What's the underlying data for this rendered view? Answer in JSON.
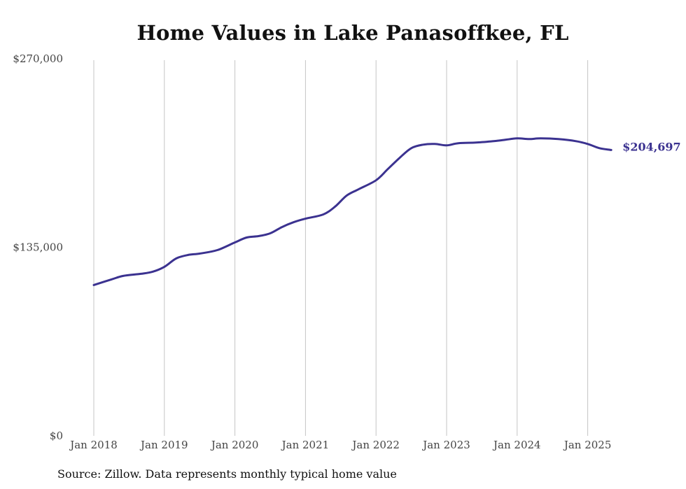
{
  "chart_data": {
    "type": "line",
    "title": "Home Values in Lake Panasoffkee, FL",
    "xlabel": "",
    "ylabel": "",
    "ylim": [
      0,
      270000
    ],
    "y_ticks": [
      {
        "value": 0,
        "label": "$0"
      },
      {
        "value": 135000,
        "label": "$135,000"
      },
      {
        "value": 270000,
        "label": "$270,000"
      }
    ],
    "x_ticks": [
      {
        "value": "2018-01",
        "label": "Jan 2018"
      },
      {
        "value": "2019-01",
        "label": "Jan 2019"
      },
      {
        "value": "2020-01",
        "label": "Jan 2020"
      },
      {
        "value": "2021-01",
        "label": "Jan 2021"
      },
      {
        "value": "2022-01",
        "label": "Jan 2022"
      },
      {
        "value": "2023-01",
        "label": "Jan 2023"
      },
      {
        "value": "2024-01",
        "label": "Jan 2024"
      },
      {
        "value": "2025-01",
        "label": "Jan 2025"
      }
    ],
    "grid": "vertical",
    "line_color": "#3b3290",
    "end_label": "$204,697",
    "series": [
      {
        "points": [
          {
            "x": "2018-01",
            "y": 108000
          },
          {
            "x": "2018-04",
            "y": 112000
          },
          {
            "x": "2018-06",
            "y": 114500
          },
          {
            "x": "2018-09",
            "y": 116000
          },
          {
            "x": "2018-11",
            "y": 117500
          },
          {
            "x": "2019-01",
            "y": 121000
          },
          {
            "x": "2019-03",
            "y": 127000
          },
          {
            "x": "2019-05",
            "y": 129500
          },
          {
            "x": "2019-07",
            "y": 130500
          },
          {
            "x": "2019-10",
            "y": 133000
          },
          {
            "x": "2020-01",
            "y": 138500
          },
          {
            "x": "2020-03",
            "y": 142000
          },
          {
            "x": "2020-05",
            "y": 143000
          },
          {
            "x": "2020-07",
            "y": 145000
          },
          {
            "x": "2020-09",
            "y": 149500
          },
          {
            "x": "2020-11",
            "y": 153000
          },
          {
            "x": "2021-01",
            "y": 155500
          },
          {
            "x": "2021-04",
            "y": 158500
          },
          {
            "x": "2021-06",
            "y": 164000
          },
          {
            "x": "2021-08",
            "y": 172000
          },
          {
            "x": "2021-10",
            "y": 176500
          },
          {
            "x": "2022-01",
            "y": 183000
          },
          {
            "x": "2022-03",
            "y": 191000
          },
          {
            "x": "2022-05",
            "y": 199000
          },
          {
            "x": "2022-07",
            "y": 206000
          },
          {
            "x": "2022-09",
            "y": 208500
          },
          {
            "x": "2022-11",
            "y": 209000
          },
          {
            "x": "2023-01",
            "y": 208000
          },
          {
            "x": "2023-03",
            "y": 209500
          },
          {
            "x": "2023-06",
            "y": 210000
          },
          {
            "x": "2023-09",
            "y": 211000
          },
          {
            "x": "2023-11",
            "y": 212000
          },
          {
            "x": "2024-01",
            "y": 213000
          },
          {
            "x": "2024-03",
            "y": 212500
          },
          {
            "x": "2024-05",
            "y": 213000
          },
          {
            "x": "2024-08",
            "y": 212500
          },
          {
            "x": "2024-11",
            "y": 211000
          },
          {
            "x": "2025-01",
            "y": 209000
          },
          {
            "x": "2025-03",
            "y": 206000
          },
          {
            "x": "2025-05",
            "y": 204697
          }
        ]
      }
    ]
  },
  "source_note": "Source: Zillow. Data represents monthly typical home value"
}
